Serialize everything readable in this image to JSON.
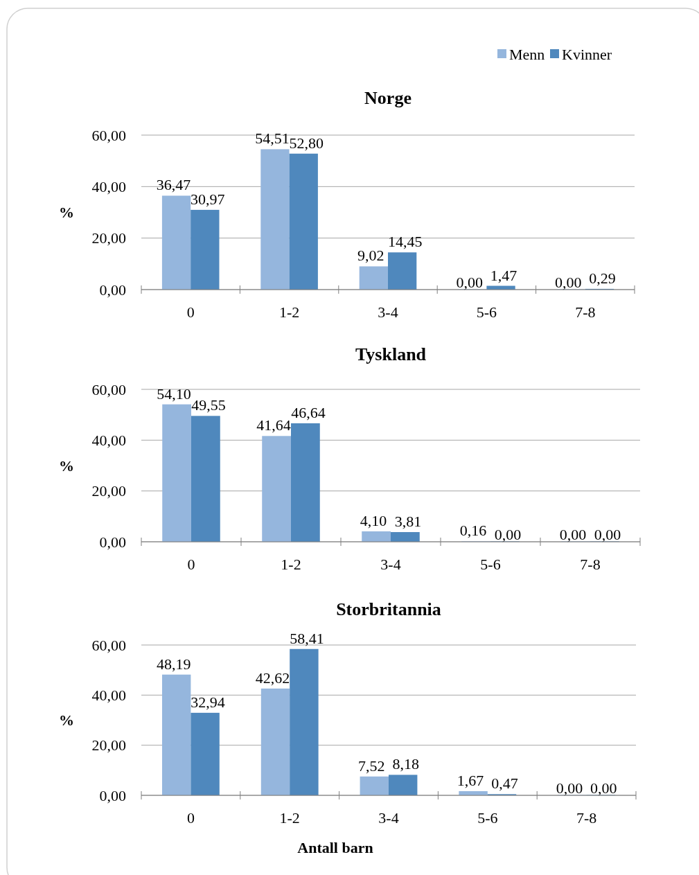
{
  "chart_data": [
    {
      "type": "bar",
      "title": "Norge",
      "ylabel": "%",
      "categories": [
        "0",
        "1-2",
        "3-4",
        "5-6",
        "7-8"
      ],
      "ylim": [
        0,
        60
      ],
      "yticks": [
        {
          "value": 0,
          "label": "0,00"
        },
        {
          "value": 20,
          "label": "20,00"
        },
        {
          "value": 40,
          "label": "40,00"
        },
        {
          "value": 60,
          "label": "60,00"
        }
      ],
      "grid": "y",
      "legend": "top right",
      "series": [
        {
          "name": "Menn",
          "color": "#95b6dd",
          "values": [
            36.47,
            54.51,
            9.02,
            0,
            0
          ],
          "value_labels": [
            "36,47",
            "54,51",
            "9,02",
            "0,00",
            "0,00"
          ]
        },
        {
          "name": "Kvinner",
          "color": "#4f88bd",
          "values": [
            30.97,
            52.8,
            14.45,
            1.47,
            0.29
          ],
          "value_labels": [
            "30,97",
            "52,80",
            "14,45",
            "1,47",
            "0,29"
          ]
        }
      ]
    },
    {
      "type": "bar",
      "title": "Tyskland",
      "ylabel": "%",
      "categories": [
        "0",
        "1-2",
        "3-4",
        "5-6",
        "7-8"
      ],
      "ylim": [
        0,
        60
      ],
      "yticks": [
        {
          "value": 0,
          "label": "0,00"
        },
        {
          "value": 20,
          "label": "20,00"
        },
        {
          "value": 40,
          "label": "40,00"
        },
        {
          "value": 60,
          "label": "60,00"
        }
      ],
      "grid": "y",
      "series": [
        {
          "color": "#95b6dd",
          "values": [
            54.1,
            41.64,
            4.1,
            0.16,
            0
          ],
          "value_labels": [
            "54,10",
            "41,64",
            "4,10",
            "0,16",
            "0,00"
          ]
        },
        {
          "color": "#4f88bd",
          "values": [
            49.55,
            46.64,
            3.81,
            0,
            0
          ],
          "value_labels": [
            "49,55",
            "46,64",
            "3,81",
            "0,00",
            "0,00"
          ]
        }
      ]
    },
    {
      "type": "bar",
      "title": "Storbritannia",
      "ylabel": "%",
      "xlabel": "Antall barn",
      "categories": [
        "0",
        "1-2",
        "3-4",
        "5-6",
        "7-8"
      ],
      "ylim": [
        0,
        60
      ],
      "yticks": [
        {
          "value": 0,
          "label": "0,00"
        },
        {
          "value": 20,
          "label": "20,00"
        },
        {
          "value": 40,
          "label": "40,00"
        },
        {
          "value": 60,
          "label": "60,00"
        }
      ],
      "grid": "y",
      "series": [
        {
          "color": "#95b6dd",
          "values": [
            48.19,
            42.62,
            7.52,
            1.67,
            0
          ],
          "value_labels": [
            "48,19",
            "42,62",
            "7,52",
            "1,67",
            "0,00"
          ]
        },
        {
          "color": "#4f88bd",
          "values": [
            32.94,
            58.41,
            8.18,
            0.47,
            0
          ],
          "value_labels": [
            "32,94",
            "58,41",
            "8,18",
            "0,47",
            "0,00"
          ]
        }
      ]
    }
  ]
}
